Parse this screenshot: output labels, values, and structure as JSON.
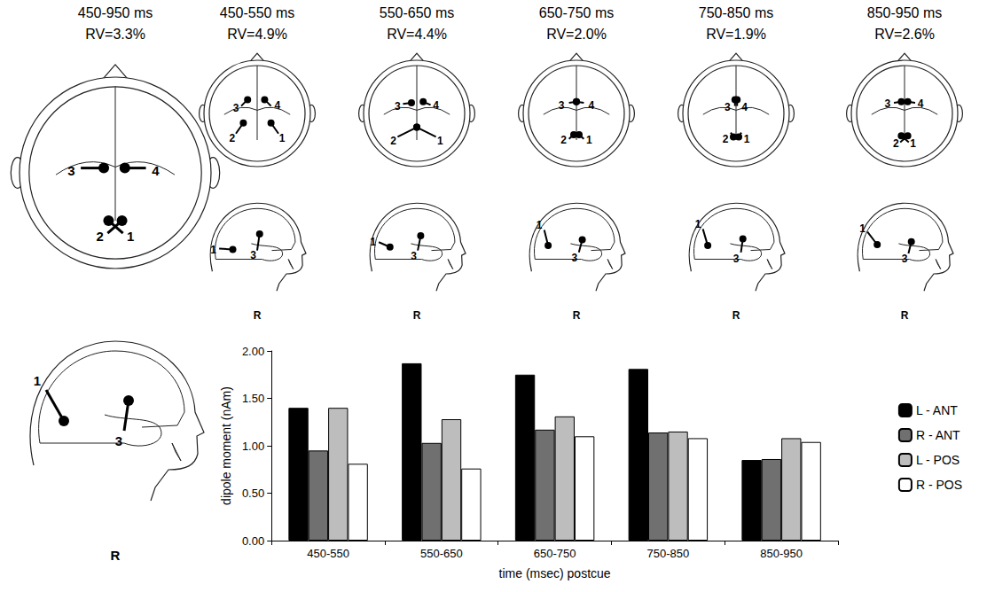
{
  "diagrams": [
    {
      "title": "450-950 ms",
      "subtitle": "RV=3.3%",
      "top_view_labels": [
        "1",
        "2",
        "3",
        "4"
      ],
      "side_view_labels": [
        "1",
        "3"
      ],
      "side_view_caption": "R"
    },
    {
      "title": "450-550 ms",
      "subtitle": "RV=4.9%",
      "top_view_labels": [
        "1",
        "2",
        "3",
        "4"
      ],
      "side_view_labels": [
        "1",
        "3"
      ],
      "side_view_caption": "R"
    },
    {
      "title": "550-650 ms",
      "subtitle": "RV=4.4%",
      "top_view_labels": [
        "1",
        "2",
        "3",
        "4"
      ],
      "side_view_labels": [
        "1",
        "3"
      ],
      "side_view_caption": "R"
    },
    {
      "title": "650-750 ms",
      "subtitle": "RV=2.0%",
      "top_view_labels": [
        "1",
        "2",
        "3",
        "4"
      ],
      "side_view_labels": [
        "1",
        "3"
      ],
      "side_view_caption": "R"
    },
    {
      "title": "750-850 ms",
      "subtitle": "RV=1.9%",
      "top_view_labels": [
        "1",
        "2",
        "3",
        "4"
      ],
      "side_view_labels": [
        "1",
        "3"
      ],
      "side_view_caption": "R"
    },
    {
      "title": "850-950 ms",
      "subtitle": "RV=2.6%",
      "top_view_labels": [
        "1",
        "2",
        "3",
        "4"
      ],
      "side_view_labels": [
        "1",
        "3"
      ],
      "side_view_caption": "R"
    }
  ],
  "chart_data": {
    "type": "bar",
    "x_label": "time (msec) postcue",
    "y_label": "dipole moment (nAm)",
    "categories": [
      "450-550",
      "550-650",
      "650-750",
      "750-850",
      "850-950"
    ],
    "series": [
      {
        "name": "L - ANT",
        "color": "#000000",
        "values": [
          1.4,
          1.87,
          1.75,
          1.81,
          0.85
        ]
      },
      {
        "name": "R - ANT",
        "color": "#707070",
        "values": [
          0.95,
          1.03,
          1.17,
          1.14,
          0.86
        ]
      },
      {
        "name": "L - POS",
        "color": "#bdbdbd",
        "values": [
          1.4,
          1.28,
          1.31,
          1.15,
          1.08
        ]
      },
      {
        "name": "R - POS",
        "color": "#ffffff",
        "values": [
          0.81,
          0.76,
          1.1,
          1.08,
          1.04
        ]
      }
    ],
    "ylim": [
      0,
      2
    ],
    "yticks": [
      {
        "value": 0,
        "label": "0.00"
      },
      {
        "value": 0.5,
        "label": "0.50"
      },
      {
        "value": 1,
        "label": "1.00"
      },
      {
        "value": 1.5,
        "label": "1.50"
      },
      {
        "value": 2,
        "label": "2.00"
      }
    ],
    "grid": false,
    "legend": "right"
  }
}
